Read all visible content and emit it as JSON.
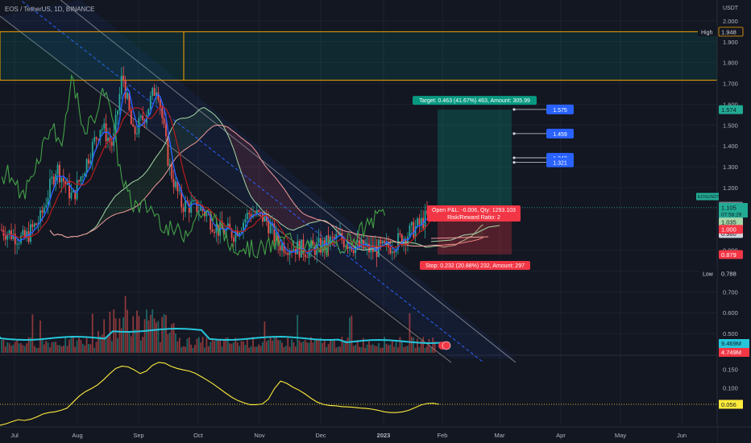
{
  "header": {
    "title": "EOS / TetherUS, 1D, BINANCE"
  },
  "price_axis": {
    "currency": "USDT",
    "ticks": [
      {
        "label": "2.000",
        "v": 2.0
      },
      {
        "label": "1.900",
        "v": 1.9
      },
      {
        "label": "1.800",
        "v": 1.8
      },
      {
        "label": "1.700",
        "v": 1.7
      },
      {
        "label": "1.600",
        "v": 1.6
      },
      {
        "label": "1.500",
        "v": 1.5
      },
      {
        "label": "1.400",
        "v": 1.4
      },
      {
        "label": "1.300",
        "v": 1.3
      },
      {
        "label": "1.200",
        "v": 1.2
      },
      {
        "label": "1.100",
        "v": 1.1
      },
      {
        "label": "0.900",
        "v": 0.9
      },
      {
        "label": "0.800",
        "v": 0.8
      },
      {
        "label": "0.700",
        "v": 0.7
      },
      {
        "label": "0.600",
        "v": 0.6
      },
      {
        "label": "0.500",
        "v": 0.5
      }
    ]
  },
  "price_labels": [
    {
      "text": "1.948",
      "v": 1.948,
      "bg": "#131722",
      "fg": "#d1d4dc",
      "border": "#f7a600"
    },
    {
      "text": "1.574",
      "v": 1.574,
      "bg": "#22ab94",
      "fg": "#131722"
    },
    {
      "text": "1.111",
      "v": 1.111,
      "bg": "#787b86",
      "fg": "#ffffff"
    },
    {
      "text": "1.105",
      "v": 1.105,
      "bg": "#22ab94",
      "fg": "#131722"
    },
    {
      "text": "1.071",
      "v": 1.071,
      "bg": "#2962ff",
      "fg": "#ffffff"
    },
    {
      "text": "1.035",
      "v": 1.035,
      "bg": "#a5d6a7",
      "fg": "#131722"
    },
    {
      "text": "0.980",
      "v": 0.98,
      "bg": "#d1d4dc",
      "fg": "#131722"
    },
    {
      "text": "1.000",
      "v": 1.0,
      "bg": "#f23645",
      "fg": "#ffffff"
    },
    {
      "text": "0.879",
      "v": 0.879,
      "bg": "#f23645",
      "fg": "#ffffff"
    },
    {
      "text": "0.788",
      "v": 0.788,
      "bg": "#131722",
      "fg": "#d1d4dc"
    }
  ],
  "symbol_tag": {
    "text": "EOSUSDT",
    "price": "1.105",
    "countdown": "07:58:29"
  },
  "high_tag": "High",
  "low_tag": "Low",
  "high_price": 1.948,
  "low_price": 0.788,
  "volume_labels": [
    {
      "text": "9.469M",
      "bg": "#26c6da",
      "fg": "#131722"
    },
    {
      "text": "4.749M",
      "bg": "#f23645",
      "fg": "#ffffff"
    }
  ],
  "indicator": {
    "ticks": [
      {
        "label": "0.150",
        "v": 0.15
      },
      {
        "label": "0.100",
        "v": 0.1
      },
      {
        "label": "0.056",
        "v": 0.056
      }
    ],
    "current_label": "0.056",
    "current_value": 0.056,
    "series": [
      0.0,
      0.004,
      0.01,
      0.015,
      0.013,
      0.016,
      0.022,
      0.03,
      0.034,
      0.036,
      0.04,
      0.046,
      0.062,
      0.078,
      0.09,
      0.098,
      0.108,
      0.122,
      0.138,
      0.152,
      0.158,
      0.156,
      0.148,
      0.138,
      0.145,
      0.16,
      0.168,
      0.166,
      0.158,
      0.152,
      0.148,
      0.145,
      0.139,
      0.13,
      0.12,
      0.11,
      0.098,
      0.086,
      0.075,
      0.066,
      0.06,
      0.055,
      0.055,
      0.057,
      0.07,
      0.098,
      0.118,
      0.112,
      0.102,
      0.094,
      0.084,
      0.072,
      0.062,
      0.056,
      0.053,
      0.052,
      0.05,
      0.049,
      0.048,
      0.046,
      0.045,
      0.043,
      0.04,
      0.036,
      0.034,
      0.034,
      0.036,
      0.04,
      0.047,
      0.054,
      0.058,
      0.059,
      0.056
    ]
  },
  "time_axis": [
    {
      "label": "Jul"
    },
    {
      "label": "Aug"
    },
    {
      "label": "Sep"
    },
    {
      "label": "Oct"
    },
    {
      "label": "Nov"
    },
    {
      "label": "Dec"
    },
    {
      "label": "2023"
    },
    {
      "label": "Feb"
    },
    {
      "label": "Mar"
    },
    {
      "label": "Apr"
    },
    {
      "label": "May"
    },
    {
      "label": "Jun"
    }
  ],
  "position": {
    "target_text": "Target: 0.463 (41.67%) 463, Amount: 305.99",
    "stop_text": "Stop: 0.232 (20.88%) 232, Amount: 297",
    "open_text": "Open P&L: -0.006, Qty: 1293.103",
    "rr_text": "Risk/Reward Ratio: 2",
    "entry": 1.111,
    "target": 1.574,
    "stop": 0.879,
    "tp_labels": [
      {
        "text": "1.575",
        "v": 1.575
      },
      {
        "text": "1.459",
        "v": 1.459
      },
      {
        "text": "1.343",
        "v": 1.343
      },
      {
        "text": "1.321",
        "v": 1.321
      }
    ]
  },
  "colors": {
    "bg": "#131722",
    "grid": "#1e222d",
    "up": "#26a69a",
    "down": "#ef5350",
    "tenkan": "#2962ff",
    "kijun": "#b71c1c",
    "chikou": "#43a047",
    "spanA": "#a5d6a7",
    "spanB": "#ef9a9a",
    "indicator": "#ffeb3b",
    "volma": "#26c6da",
    "box": "#f7a600"
  }
}
